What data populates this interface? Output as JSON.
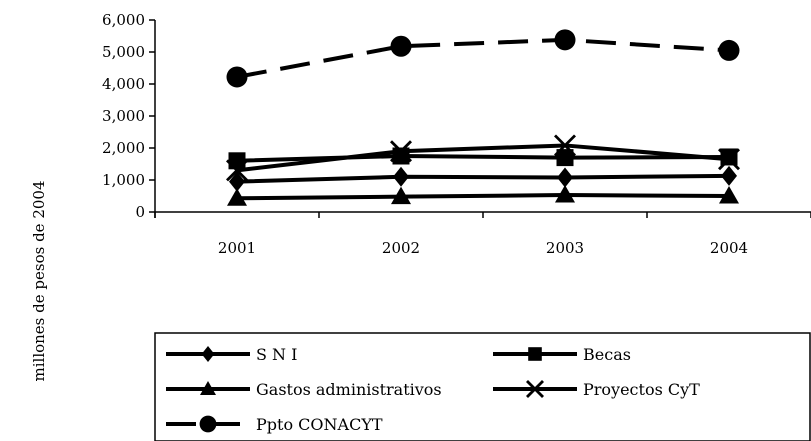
{
  "chart_data": {
    "type": "line",
    "categories": [
      "2001",
      "2002",
      "2003",
      "2004"
    ],
    "ylabel": "millones de pesos de 2004",
    "ylim": [
      0,
      6000
    ],
    "yticks": [
      "0",
      "1,000",
      "2,000",
      "3,000",
      "4,000",
      "5,000",
      "6,000"
    ],
    "legend_position": "bottom",
    "series": [
      {
        "name": "S N I",
        "marker": "diamond",
        "dash": "solid",
        "values": [
          950,
          1100,
          1080,
          1130
        ]
      },
      {
        "name": "Becas",
        "marker": "square",
        "dash": "solid",
        "values": [
          1600,
          1750,
          1700,
          1720
        ]
      },
      {
        "name": "Gastos administrativos",
        "marker": "triangle",
        "dash": "solid",
        "values": [
          430,
          480,
          530,
          500
        ]
      },
      {
        "name": "Proyectos CyT",
        "marker": "x",
        "dash": "solid",
        "values": [
          1300,
          1900,
          2080,
          1650
        ]
      },
      {
        "name": "Ppto CONACYT",
        "marker": "circle",
        "dash": "dashed",
        "values": [
          4220,
          5180,
          5380,
          5050
        ]
      }
    ]
  }
}
